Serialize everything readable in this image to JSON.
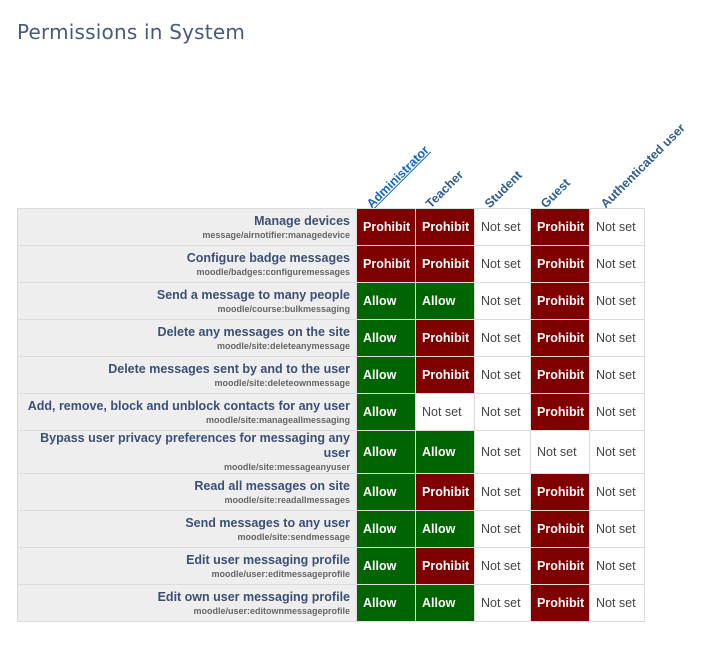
{
  "page": {
    "title": "Permissions in System"
  },
  "roles": [
    {
      "label": "Administrator",
      "link": true
    },
    {
      "label": "Teacher",
      "link": false
    },
    {
      "label": "Student",
      "link": false
    },
    {
      "label": "Guest",
      "link": false
    },
    {
      "label": "Authenticated user",
      "link": false
    }
  ],
  "colors": {
    "prohibit": "#7f0000",
    "allow": "#006400",
    "not_set": "#ffffff",
    "row_header": "#eeeeee"
  },
  "rows": [
    {
      "name": "Manage devices",
      "id": "message/airnotifier:managedevice",
      "values": [
        "Prohibit",
        "Prohibit",
        "Not set",
        "Prohibit",
        "Not set"
      ]
    },
    {
      "name": "Configure badge messages",
      "id": "moodle/badges:configuremessages",
      "values": [
        "Prohibit",
        "Prohibit",
        "Not set",
        "Prohibit",
        "Not set"
      ]
    },
    {
      "name": "Send a message to many people",
      "id": "moodle/course:bulkmessaging",
      "values": [
        "Allow",
        "Allow",
        "Not set",
        "Prohibit",
        "Not set"
      ]
    },
    {
      "name": "Delete any messages on the site",
      "id": "moodle/site:deleteanymessage",
      "values": [
        "Allow",
        "Prohibit",
        "Not set",
        "Prohibit",
        "Not set"
      ]
    },
    {
      "name": "Delete messages sent by and to the user",
      "id": "moodle/site:deleteownmessage",
      "values": [
        "Allow",
        "Prohibit",
        "Not set",
        "Prohibit",
        "Not set"
      ]
    },
    {
      "name": "Add, remove, block and unblock contacts for any user",
      "id": "moodle/site:manageallmessaging",
      "values": [
        "Allow",
        "Not set",
        "Not set",
        "Prohibit",
        "Not set"
      ]
    },
    {
      "name": "Bypass user privacy preferences for messaging any user",
      "id": "moodle/site:messageanyuser",
      "values": [
        "Allow",
        "Allow",
        "Not set",
        "Not set",
        "Not set"
      ]
    },
    {
      "name": "Read all messages on site",
      "id": "moodle/site:readallmessages",
      "values": [
        "Allow",
        "Prohibit",
        "Not set",
        "Prohibit",
        "Not set"
      ]
    },
    {
      "name": "Send messages to any user",
      "id": "moodle/site:sendmessage",
      "values": [
        "Allow",
        "Allow",
        "Not set",
        "Prohibit",
        "Not set"
      ]
    },
    {
      "name": "Edit user messaging profile",
      "id": "moodle/user:editmessageprofile",
      "values": [
        "Allow",
        "Prohibit",
        "Not set",
        "Prohibit",
        "Not set"
      ]
    },
    {
      "name": "Edit own user messaging profile",
      "id": "moodle/user:editownmessageprofile",
      "values": [
        "Allow",
        "Allow",
        "Not set",
        "Prohibit",
        "Not set"
      ]
    }
  ]
}
